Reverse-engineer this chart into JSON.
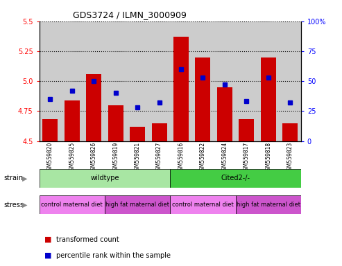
{
  "title": "GDS3724 / ILMN_3000909",
  "samples": [
    "GSM559820",
    "GSM559825",
    "GSM559826",
    "GSM559819",
    "GSM559821",
    "GSM559827",
    "GSM559816",
    "GSM559822",
    "GSM559824",
    "GSM559817",
    "GSM559818",
    "GSM559823"
  ],
  "transformed_count": [
    4.68,
    4.84,
    5.06,
    4.8,
    4.62,
    4.65,
    5.37,
    5.2,
    4.95,
    4.68,
    5.2,
    4.65
  ],
  "percentile_rank": [
    35,
    42,
    50,
    40,
    28,
    32,
    60,
    53,
    47,
    33,
    53,
    32
  ],
  "ylim_left": [
    4.5,
    5.5
  ],
  "ylim_right": [
    0,
    100
  ],
  "yticks_left": [
    4.5,
    4.75,
    5.0,
    5.25,
    5.5
  ],
  "yticks_right": [
    0,
    25,
    50,
    75,
    100
  ],
  "bar_color": "#cc0000",
  "dot_color": "#0000cc",
  "bar_bottom": 4.5,
  "strain_groups": [
    {
      "label": "wildtype",
      "start": 0,
      "end": 6,
      "color": "#a8e6a3"
    },
    {
      "label": "Cited2-/-",
      "start": 6,
      "end": 12,
      "color": "#44cc44"
    }
  ],
  "stress_groups": [
    {
      "label": "control maternal diet",
      "start": 0,
      "end": 3,
      "color": "#ee82ee"
    },
    {
      "label": "high fat maternal diet",
      "start": 3,
      "end": 6,
      "color": "#cc55cc"
    },
    {
      "label": "control maternal diet",
      "start": 6,
      "end": 9,
      "color": "#ee82ee"
    },
    {
      "label": "high fat maternal diet",
      "start": 9,
      "end": 12,
      "color": "#cc55cc"
    }
  ],
  "sample_bg_color": "#cccccc",
  "legend_items": [
    {
      "label": "transformed count",
      "color": "#cc0000"
    },
    {
      "label": "percentile rank within the sample",
      "color": "#0000cc"
    }
  ]
}
